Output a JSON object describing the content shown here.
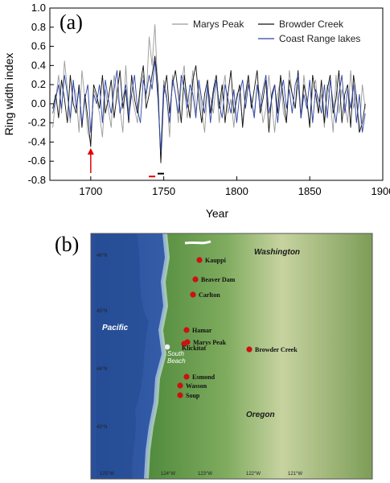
{
  "panel_a": {
    "label": "(a)"
  },
  "panel_b": {
    "label": "(b)"
  },
  "chart_data": {
    "type": "line",
    "title": "",
    "xlabel": "Year",
    "ylabel": "Ring width index",
    "xlim": [
      1672,
      1900
    ],
    "ylim": [
      -0.8,
      1.0
    ],
    "xticks": [
      1700,
      1750,
      1800,
      1850,
      1900
    ],
    "yticks": [
      -0.8,
      -0.6,
      -0.4,
      -0.2,
      0.0,
      0.2,
      0.4,
      0.6,
      0.8,
      1.0
    ],
    "grid": false,
    "legend": "top-right",
    "annotations": [
      {
        "type": "arrow",
        "color": "#e00000",
        "x": 1700
      },
      {
        "type": "bar",
        "color": "#e00000",
        "x": 1742,
        "y": -0.76
      },
      {
        "type": "bar",
        "color": "#000000",
        "x": 1748,
        "y": -0.73
      }
    ],
    "series": [
      {
        "name": "Marys Peak",
        "color": "#9a9a9a",
        "x": [
          1674,
          1676,
          1678,
          1680,
          1682,
          1684,
          1686,
          1688,
          1690,
          1692,
          1694,
          1696,
          1698,
          1700,
          1702,
          1704,
          1706,
          1708,
          1710,
          1712,
          1714,
          1716,
          1718,
          1720,
          1722,
          1724,
          1726,
          1728,
          1730,
          1732,
          1734,
          1736,
          1738,
          1740,
          1742,
          1744,
          1746,
          1748,
          1750,
          1752,
          1754,
          1756,
          1758,
          1760,
          1762,
          1764,
          1766,
          1768,
          1770,
          1772,
          1774,
          1776,
          1778,
          1780,
          1782,
          1784,
          1786,
          1788,
          1790,
          1792,
          1794,
          1796,
          1798,
          1800,
          1802,
          1804,
          1806,
          1808,
          1810,
          1812,
          1814,
          1816,
          1818,
          1820,
          1822,
          1824,
          1826,
          1828,
          1830,
          1832,
          1834,
          1836,
          1838,
          1840,
          1842,
          1844,
          1846,
          1848,
          1850,
          1852,
          1854,
          1856,
          1858,
          1860,
          1862,
          1864,
          1866,
          1868,
          1870,
          1872,
          1874,
          1876,
          1878,
          1880,
          1882,
          1884,
          1886,
          1888
        ],
        "y": [
          -0.25,
          0.05,
          0.3,
          -0.1,
          0.45,
          0.15,
          -0.2,
          0.2,
          0.1,
          -0.3,
          0.35,
          0.05,
          -0.3,
          -0.4,
          0.15,
          0.05,
          -0.1,
          -0.35,
          0.15,
          -0.05,
          -0.25,
          0.3,
          0.1,
          -0.05,
          -0.3,
          0.4,
          -0.1,
          0.1,
          -0.05,
          -0.2,
          0.15,
          0.3,
          0.05,
          0.7,
          0.4,
          0.83,
          0.1,
          -0.6,
          0.25,
          0.1,
          -0.35,
          0.3,
          0.1,
          -0.2,
          0.2,
          0.4,
          -0.15,
          0.05,
          0.35,
          -0.1,
          0.2,
          -0.05,
          -0.3,
          0.15,
          0.05,
          -0.1,
          0.25,
          -0.2,
          0.1,
          0.3,
          -0.1,
          0.05,
          -0.25,
          0.1,
          0.15,
          -0.2,
          0.05,
          0.25,
          0.0,
          -0.1,
          0.2,
          0.1,
          -0.2,
          -0.05,
          0.3,
          0.0,
          -0.3,
          0.1,
          0.25,
          -0.1,
          -0.2,
          0.35,
          0.1,
          -0.05,
          0.2,
          -0.15,
          0.3,
          0.0,
          -0.2,
          0.15,
          0.25,
          -0.1,
          0.1,
          -0.25,
          0.2,
          0.05,
          -0.3,
          0.3,
          -0.1,
          0.15,
          0.0,
          -0.2,
          0.35,
          -0.05,
          0.1,
          -0.3,
          0.2,
          -0.05
        ]
      },
      {
        "name": "Browder Creek",
        "color": "#111111",
        "x": [
          1674,
          1676,
          1678,
          1680,
          1682,
          1684,
          1686,
          1688,
          1690,
          1692,
          1694,
          1696,
          1698,
          1700,
          1702,
          1704,
          1706,
          1708,
          1710,
          1712,
          1714,
          1716,
          1718,
          1720,
          1722,
          1724,
          1726,
          1728,
          1730,
          1732,
          1734,
          1736,
          1738,
          1740,
          1742,
          1744,
          1746,
          1748,
          1750,
          1752,
          1754,
          1756,
          1758,
          1760,
          1762,
          1764,
          1766,
          1768,
          1770,
          1772,
          1774,
          1776,
          1778,
          1780,
          1782,
          1784,
          1786,
          1788,
          1790,
          1792,
          1794,
          1796,
          1798,
          1800,
          1802,
          1804,
          1806,
          1808,
          1810,
          1812,
          1814,
          1816,
          1818,
          1820,
          1822,
          1824,
          1826,
          1828,
          1830,
          1832,
          1834,
          1836,
          1838,
          1840,
          1842,
          1844,
          1846,
          1848,
          1850,
          1852,
          1854,
          1856,
          1858,
          1860,
          1862,
          1864,
          1866,
          1868,
          1870,
          1872,
          1874,
          1876,
          1878,
          1880,
          1882,
          1884,
          1886,
          1888
        ],
        "y": [
          -0.05,
          0.1,
          -0.15,
          0.25,
          0.05,
          -0.2,
          0.3,
          0.0,
          -0.1,
          0.2,
          -0.25,
          0.1,
          -0.15,
          -0.45,
          0.2,
          0.1,
          -0.05,
          0.3,
          -0.1,
          0.05,
          0.25,
          -0.15,
          0.1,
          0.35,
          -0.05,
          0.15,
          -0.2,
          0.3,
          0.05,
          -0.1,
          0.2,
          0.4,
          -0.05,
          0.1,
          0.3,
          0.5,
          0.2,
          -0.62,
          0.1,
          0.3,
          -0.1,
          0.2,
          0.35,
          0.1,
          -0.2,
          0.3,
          0.05,
          -0.15,
          0.25,
          0.4,
          0.05,
          -0.2,
          0.1,
          0.25,
          -0.1,
          0.15,
          0.3,
          -0.05,
          0.2,
          -0.2,
          0.1,
          0.35,
          -0.1,
          0.05,
          0.2,
          -0.25,
          0.1,
          0.3,
          -0.05,
          0.15,
          0.35,
          -0.1,
          0.05,
          0.25,
          -0.3,
          0.1,
          0.2,
          -0.1,
          0.3,
          0.05,
          -0.2,
          0.25,
          0.1,
          -0.05,
          0.35,
          -0.15,
          0.2,
          0.05,
          -0.25,
          0.3,
          0.1,
          -0.1,
          0.25,
          -0.2,
          0.15,
          0.3,
          -0.1,
          0.05,
          0.35,
          -0.2,
          0.1,
          0.2,
          -0.25,
          0.3,
          0.05,
          -0.3,
          -0.2,
          0.0
        ]
      },
      {
        "name": "Coast Range lakes",
        "color": "#2c45a8",
        "x": [
          1674,
          1676,
          1678,
          1680,
          1682,
          1684,
          1686,
          1688,
          1690,
          1692,
          1694,
          1696,
          1698,
          1700,
          1702,
          1704,
          1706,
          1708,
          1710,
          1712,
          1714,
          1716,
          1718,
          1720,
          1722,
          1724,
          1726,
          1728,
          1730,
          1732,
          1734,
          1736,
          1738,
          1740,
          1742,
          1744,
          1746,
          1748,
          1750,
          1752,
          1754,
          1756,
          1758,
          1760,
          1762,
          1764,
          1766,
          1768,
          1770,
          1772,
          1774,
          1776,
          1778,
          1780,
          1782,
          1784,
          1786,
          1788,
          1790,
          1792,
          1794,
          1796,
          1798,
          1800,
          1802,
          1804,
          1806,
          1808,
          1810,
          1812,
          1814,
          1816,
          1818,
          1820,
          1822,
          1824,
          1826,
          1828,
          1830,
          1832,
          1834,
          1836,
          1838,
          1840,
          1842,
          1844,
          1846,
          1848,
          1850,
          1852,
          1854,
          1856,
          1858,
          1860,
          1862,
          1864,
          1866,
          1868,
          1870,
          1872,
          1874,
          1876,
          1878,
          1880,
          1882,
          1884,
          1886,
          1888
        ],
        "y": [
          -0.1,
          0.05,
          0.2,
          -0.05,
          0.3,
          0.1,
          -0.15,
          0.25,
          -0.05,
          0.15,
          -0.2,
          0.05,
          0.2,
          -0.3,
          0.1,
          0.0,
          0.2,
          -0.2,
          0.25,
          0.05,
          -0.1,
          0.15,
          0.35,
          -0.1,
          0.05,
          0.2,
          -0.15,
          0.1,
          0.3,
          -0.05,
          -0.2,
          0.25,
          0.1,
          0.3,
          0.15,
          0.45,
          0.05,
          -0.5,
          0.2,
          0.05,
          -0.2,
          0.25,
          0.1,
          -0.1,
          0.3,
          0.15,
          -0.05,
          0.2,
          0.1,
          -0.15,
          0.25,
          0.05,
          -0.1,
          0.2,
          -0.2,
          0.1,
          0.25,
          0.0,
          -0.15,
          0.2,
          0.05,
          -0.1,
          0.15,
          -0.2,
          0.1,
          0.25,
          -0.05,
          0.2,
          0.05,
          -0.15,
          0.2,
          -0.05,
          0.15,
          0.3,
          -0.1,
          0.05,
          0.2,
          -0.2,
          0.1,
          0.25,
          -0.05,
          0.15,
          -0.1,
          0.2,
          0.3,
          -0.15,
          0.1,
          -0.05,
          0.25,
          -0.2,
          0.15,
          0.05,
          -0.1,
          0.2,
          -0.15,
          0.25,
          0.0,
          -0.2,
          0.1,
          0.3,
          -0.1,
          0.15,
          -0.05,
          0.2,
          -0.2,
          0.1,
          -0.3,
          -0.1
        ]
      }
    ]
  },
  "map": {
    "sites": [
      "Kauppi",
      "Beaver Dam",
      "Carlton",
      "Hamar",
      "Marys Peak",
      "Klickitat",
      "Esmond",
      "Wasson",
      "Soup",
      "Browder Creek"
    ],
    "highlight_site": "South Beach",
    "regions": {
      "washington": "Washington",
      "oregon": "Oregon",
      "pacific": "Pacific"
    },
    "lat_labels": [
      "46°N",
      "45°N",
      "44°N",
      "43°N"
    ],
    "lon_labels": [
      "125°W",
      "124°W",
      "123°W",
      "122°W",
      "121°W"
    ],
    "colors": {
      "site": "#cc1111",
      "south_beach": "#f0f0f0",
      "ocean_deep": "#2a4e9a",
      "ocean_shallow": "#9fc7ea",
      "land": "#6fa25a"
    }
  }
}
